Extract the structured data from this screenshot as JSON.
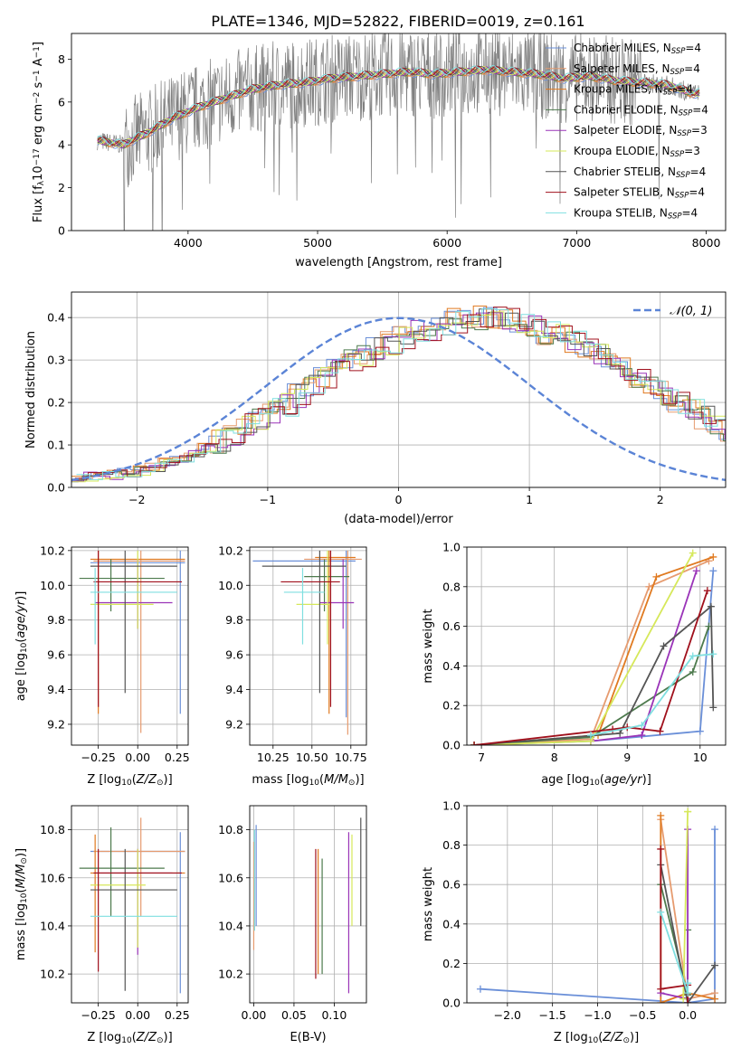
{
  "figure_title": "PLATE=1346, MJD=52822, FIBERID=0019, z=0.161",
  "series": [
    {
      "name": "Chabrier MILES, N_SSP=4",
      "color": "#6a8fd8"
    },
    {
      "name": "Salpeter MILES, N_SSP=4",
      "color": "#e69b6f"
    },
    {
      "name": "Kroupa MILES, N_SSP=4",
      "color": "#e07a20"
    },
    {
      "name": "Chabrier ELODIE, N_SSP=4",
      "color": "#4d7a4d"
    },
    {
      "name": "Salpeter ELODIE, N_SSP=3",
      "color": "#9a34b8"
    },
    {
      "name": "Kroupa ELODIE, N_SSP=3",
      "color": "#d6e85a"
    },
    {
      "name": "Chabrier STELIB, N_SSP=4",
      "color": "#555555"
    },
    {
      "name": "Salpeter STELIB, N_SSP=4",
      "color": "#a0101c"
    },
    {
      "name": "Kroupa STELIB, N_SSP=4",
      "color": "#7fdfe0"
    }
  ],
  "chart_data": [
    {
      "id": "spectrum",
      "type": "line",
      "xlabel": "wavelength [Angstrom, rest frame]",
      "ylabel": "Flux [f_λ 10^-17 erg cm^-2 s^-1 A^-1]",
      "xlim": [
        3100,
        8150
      ],
      "ylim": [
        0,
        9.2
      ],
      "xticks": [
        4000,
        5000,
        6000,
        7000,
        8000
      ],
      "yticks": [
        0,
        2,
        4,
        6,
        8
      ],
      "data_label": "data (gray)",
      "model_points": {
        "x": [
          3300,
          3500,
          3700,
          3900,
          4100,
          4300,
          4500,
          4700,
          4900,
          5100,
          5300,
          5500,
          5700,
          5900,
          6100,
          6300,
          6500,
          6700,
          6900,
          7100,
          7300,
          7500,
          7700,
          7900
        ],
        "y": [
          4.2,
          4.0,
          4.6,
          5.3,
          5.8,
          6.2,
          6.6,
          6.8,
          6.9,
          7.1,
          7.2,
          7.3,
          7.4,
          7.3,
          7.4,
          7.5,
          7.4,
          7.3,
          7.1,
          7.2,
          7.0,
          6.9,
          6.8,
          6.4
        ]
      }
    },
    {
      "id": "residuals",
      "type": "histogram",
      "xlabel": "(data-model)/error",
      "ylabel": "Normed distribution",
      "xlim": [
        -2.5,
        2.5
      ],
      "ylim": [
        0,
        0.46
      ],
      "xticks": [
        -2,
        -1,
        0,
        1,
        2
      ],
      "yticks": [
        0.0,
        0.1,
        0.2,
        0.3,
        0.4
      ],
      "legend": "N(0,1)",
      "bin_width": 0.1,
      "base_counts": [
        0.025,
        0.026,
        0.028,
        0.03,
        0.035,
        0.04,
        0.048,
        0.058,
        0.066,
        0.078,
        0.095,
        0.11,
        0.125,
        0.145,
        0.16,
        0.18,
        0.195,
        0.215,
        0.235,
        0.258,
        0.278,
        0.295,
        0.31,
        0.325,
        0.34,
        0.355,
        0.365,
        0.375,
        0.385,
        0.392,
        0.398,
        0.4,
        0.398,
        0.392,
        0.385,
        0.376,
        0.365,
        0.355,
        0.342,
        0.328,
        0.312,
        0.296,
        0.278,
        0.26,
        0.24,
        0.22,
        0.2,
        0.18,
        0.162,
        0.145,
        0.128,
        0.112,
        0.098,
        0.085,
        0.074,
        0.064,
        0.055,
        0.048,
        0.042,
        0.037,
        0.033,
        0.03,
        0.028,
        0.026,
        0.025,
        0.025,
        0.024,
        0.024,
        0.024,
        0.024,
        0.024,
        0.024,
        0.024,
        0.024
      ]
    },
    {
      "id": "age_vs_Z",
      "type": "errorbar",
      "xlabel": "Z [log10(Z/Z_sun)]",
      "ylabel": "age [log10(age/yr)]",
      "xlim": [
        -0.42,
        0.32
      ],
      "ylim": [
        9.08,
        10.22
      ],
      "xticks": [
        -0.25,
        0.0,
        0.25
      ],
      "yticks": [
        9.2,
        9.4,
        9.6,
        9.8,
        10.0,
        10.2
      ],
      "points": [
        {
          "x": 0.27,
          "y": 10.13,
          "xlo": -0.3,
          "xhi": 0.3,
          "ylo": 9.26,
          "yhi": 10.2
        },
        {
          "x": 0.02,
          "y": 10.14,
          "xlo": -0.28,
          "xhi": 0.3,
          "ylo": 9.15,
          "yhi": 10.2
        },
        {
          "x": -0.25,
          "y": 10.15,
          "xlo": -0.3,
          "xhi": 0.3,
          "ylo": 9.26,
          "yhi": 10.2
        },
        {
          "x": -0.17,
          "y": 10.04,
          "xlo": -0.37,
          "xhi": 0.17,
          "ylo": 9.85,
          "yhi": 10.15
        },
        {
          "x": 0.0,
          "y": 9.9,
          "xlo": -0.27,
          "xhi": 0.22,
          "ylo": 9.75,
          "yhi": 10.15
        },
        {
          "x": 0.0,
          "y": 9.89,
          "xlo": -0.3,
          "xhi": 0.1,
          "ylo": 9.75,
          "yhi": 10.2
        },
        {
          "x": -0.08,
          "y": 10.11,
          "xlo": -0.3,
          "xhi": 0.25,
          "ylo": 9.38,
          "yhi": 10.2
        },
        {
          "x": -0.25,
          "y": 10.02,
          "xlo": -0.28,
          "xhi": 0.28,
          "ylo": 9.3,
          "yhi": 10.2
        },
        {
          "x": -0.27,
          "y": 9.96,
          "xlo": -0.3,
          "xhi": 0.25,
          "ylo": 9.66,
          "yhi": 10.1
        }
      ]
    },
    {
      "id": "age_vs_mass",
      "type": "errorbar",
      "xlabel": "mass [log10(M/M_sun)]",
      "ylabel": "",
      "xlim": [
        10.1,
        10.85
      ],
      "ylim": [
        9.08,
        10.22
      ],
      "xticks": [
        10.25,
        10.5,
        10.75
      ],
      "yticks": [
        9.2,
        9.4,
        9.6,
        9.8,
        10.0,
        10.2
      ],
      "points": [
        {
          "x": 10.72,
          "y": 10.14,
          "xlo": 10.12,
          "xhi": 10.78,
          "ylo": 9.24,
          "yhi": 10.2
        },
        {
          "x": 10.73,
          "y": 10.15,
          "xlo": 10.45,
          "xhi": 10.82,
          "ylo": 9.14,
          "yhi": 10.2
        },
        {
          "x": 10.61,
          "y": 10.16,
          "xlo": 10.52,
          "xhi": 10.78,
          "ylo": 9.26,
          "yhi": 10.2
        },
        {
          "x": 10.58,
          "y": 10.05,
          "xlo": 10.45,
          "xhi": 10.74,
          "ylo": 9.85,
          "yhi": 10.15
        },
        {
          "x": 10.7,
          "y": 9.9,
          "xlo": 10.55,
          "xhi": 10.77,
          "ylo": 9.75,
          "yhi": 10.15
        },
        {
          "x": 10.6,
          "y": 9.89,
          "xlo": 10.4,
          "xhi": 10.62,
          "ylo": 9.66,
          "yhi": 10.2
        },
        {
          "x": 10.55,
          "y": 10.11,
          "xlo": 10.18,
          "xhi": 10.72,
          "ylo": 9.38,
          "yhi": 10.2
        },
        {
          "x": 10.62,
          "y": 10.02,
          "xlo": 10.3,
          "xhi": 10.68,
          "ylo": 9.3,
          "yhi": 10.2
        },
        {
          "x": 10.44,
          "y": 9.96,
          "xlo": 10.32,
          "xhi": 10.58,
          "ylo": 9.66,
          "yhi": 10.1
        }
      ]
    },
    {
      "id": "weight_vs_age",
      "type": "line",
      "xlabel": "age [log10(age/yr)]",
      "ylabel": "mass weight",
      "xlim": [
        6.8,
        10.35
      ],
      "ylim": [
        0,
        1
      ],
      "xticks": [
        7,
        8,
        9,
        10
      ],
      "yticks": [
        0.0,
        0.2,
        0.4,
        0.6,
        0.8,
        1.0
      ],
      "lines": [
        {
          "x": [
            6.9,
            8.5,
            10.0,
            10.18
          ],
          "y": [
            0.0,
            0.02,
            0.07,
            0.88
          ]
        },
        {
          "x": [
            6.9,
            8.5,
            9.3,
            10.12
          ],
          "y": [
            0.0,
            0.03,
            0.8,
            0.93
          ]
        },
        {
          "x": [
            6.9,
            8.6,
            9.4,
            10.18
          ],
          "y": [
            0.0,
            0.05,
            0.85,
            0.95
          ]
        },
        {
          "x": [
            6.9,
            8.5,
            9.9,
            10.12
          ],
          "y": [
            0.0,
            0.04,
            0.37,
            0.6
          ]
        },
        {
          "x": [
            8.5,
            9.2,
            9.95
          ],
          "y": [
            0.02,
            0.05,
            0.88
          ]
        },
        {
          "x": [
            6.9,
            8.5,
            9.9
          ],
          "y": [
            0.0,
            0.02,
            0.97
          ]
        },
        {
          "x": [
            6.9,
            8.9,
            9.5,
            10.15,
            10.18
          ],
          "y": [
            0.0,
            0.06,
            0.5,
            0.7,
            0.19
          ]
        },
        {
          "x": [
            6.9,
            8.8,
            9.0,
            9.45,
            10.1
          ],
          "y": [
            0.0,
            0.08,
            0.09,
            0.07,
            0.78
          ]
        },
        {
          "x": [
            8.5,
            9.2,
            9.9,
            10.18
          ],
          "y": [
            0.05,
            0.1,
            0.45,
            0.46
          ]
        }
      ]
    },
    {
      "id": "mass_vs_Z",
      "type": "errorbar",
      "xlabel": "Z [log10(Z/Z_sun)]",
      "ylabel": "mass [log10(M/M_sun)]",
      "xlim": [
        -0.42,
        0.32
      ],
      "ylim": [
        10.08,
        10.9
      ],
      "xticks": [
        -0.25,
        0.0,
        0.25
      ],
      "yticks": [
        10.2,
        10.4,
        10.6,
        10.8
      ],
      "points": [
        {
          "x": 0.27,
          "y": 10.71,
          "xlo": -0.3,
          "xhi": 0.3,
          "ylo": 10.12,
          "yhi": 10.79
        },
        {
          "x": 0.02,
          "y": 10.71,
          "xlo": -0.28,
          "xhi": 0.3,
          "ylo": 10.44,
          "yhi": 10.85
        },
        {
          "x": -0.27,
          "y": 10.62,
          "xlo": -0.3,
          "xhi": 0.3,
          "ylo": 10.29,
          "yhi": 10.78
        },
        {
          "x": -0.17,
          "y": 10.64,
          "xlo": -0.37,
          "xhi": 0.17,
          "ylo": 10.44,
          "yhi": 10.81
        },
        {
          "x": 0.0,
          "y": 10.62,
          "xlo": -0.27,
          "xhi": 0.22,
          "ylo": 10.28,
          "yhi": 10.72
        },
        {
          "x": 0.0,
          "y": 10.57,
          "xlo": -0.3,
          "xhi": 0.05,
          "ylo": 10.31,
          "yhi": 10.72
        },
        {
          "x": -0.08,
          "y": 10.55,
          "xlo": -0.3,
          "xhi": 0.25,
          "ylo": 10.13,
          "yhi": 10.72
        },
        {
          "x": -0.25,
          "y": 10.62,
          "xlo": -0.28,
          "xhi": 0.28,
          "ylo": 10.21,
          "yhi": 10.72
        },
        {
          "x": -0.27,
          "y": 10.44,
          "xlo": -0.3,
          "xhi": 0.25,
          "ylo": 10.44,
          "yhi": 10.44
        }
      ]
    },
    {
      "id": "mass_vs_ebv",
      "type": "errorbar",
      "xlabel": "E(B-V)",
      "ylabel": "",
      "xlim": [
        -0.005,
        0.14
      ],
      "ylim": [
        10.08,
        10.9
      ],
      "xticks": [
        0.0,
        0.05,
        0.1
      ],
      "yticks": [
        10.2,
        10.4,
        10.6,
        10.8
      ],
      "points": [
        {
          "x": 0.003,
          "y": 10.7,
          "ylo": 10.4,
          "yhi": 10.82
        },
        {
          "x": 0.0,
          "y": 10.58,
          "ylo": 10.3,
          "yhi": 10.75
        },
        {
          "x": 0.08,
          "y": 10.55,
          "ylo": 10.2,
          "yhi": 10.72
        },
        {
          "x": 0.085,
          "y": 10.48,
          "ylo": 10.2,
          "yhi": 10.68
        },
        {
          "x": 0.118,
          "y": 10.6,
          "ylo": 10.12,
          "yhi": 10.79
        },
        {
          "x": 0.122,
          "y": 10.62,
          "ylo": 10.4,
          "yhi": 10.78
        },
        {
          "x": 0.133,
          "y": 10.62,
          "ylo": 10.4,
          "yhi": 10.85
        },
        {
          "x": 0.077,
          "y": 10.45,
          "ylo": 10.18,
          "yhi": 10.72
        },
        {
          "x": 0.001,
          "y": 10.55,
          "ylo": 10.38,
          "yhi": 10.8
        }
      ]
    },
    {
      "id": "weight_vs_Z",
      "type": "line",
      "xlabel": "Z [log10(Z/Z_sun)]",
      "ylabel": "mass weight",
      "xlim": [
        -2.45,
        0.42
      ],
      "ylim": [
        0,
        1
      ],
      "xticks": [
        -2.0,
        -1.5,
        -1.0,
        -0.5,
        0.0
      ],
      "yticks": [
        0.0,
        0.2,
        0.4,
        0.6,
        0.8,
        1.0
      ],
      "lines": [
        {
          "x": [
            -2.3,
            0.0,
            0.3,
            0.3
          ],
          "y": [
            0.07,
            0.0,
            0.02,
            0.88
          ]
        },
        {
          "x": [
            -0.3,
            0.0,
            0.3
          ],
          "y": [
            0.93,
            0.02,
            0.05
          ]
        },
        {
          "x": [
            -0.3,
            -0.3,
            0.0,
            0.3
          ],
          "y": [
            0.95,
            0.0,
            0.05,
            0.02
          ]
        },
        {
          "x": [
            -0.3,
            0.0,
            0.0
          ],
          "y": [
            0.6,
            0.04,
            0.37
          ]
        },
        {
          "x": [
            -0.3,
            0.0,
            0.0
          ],
          "y": [
            0.05,
            0.02,
            0.88
          ]
        },
        {
          "x": [
            0.0,
            -0.05,
            0.0
          ],
          "y": [
            0.97,
            0.02,
            0.97
          ]
        },
        {
          "x": [
            -0.3,
            0.0,
            0.3
          ],
          "y": [
            0.7,
            0.0,
            0.19
          ]
        },
        {
          "x": [
            -0.3,
            -0.3,
            0.0,
            0.0
          ],
          "y": [
            0.78,
            0.07,
            0.09,
            0.0
          ]
        },
        {
          "x": [
            -0.3,
            0.0,
            0.0
          ],
          "y": [
            0.46,
            0.05,
            0.1
          ]
        }
      ]
    }
  ]
}
